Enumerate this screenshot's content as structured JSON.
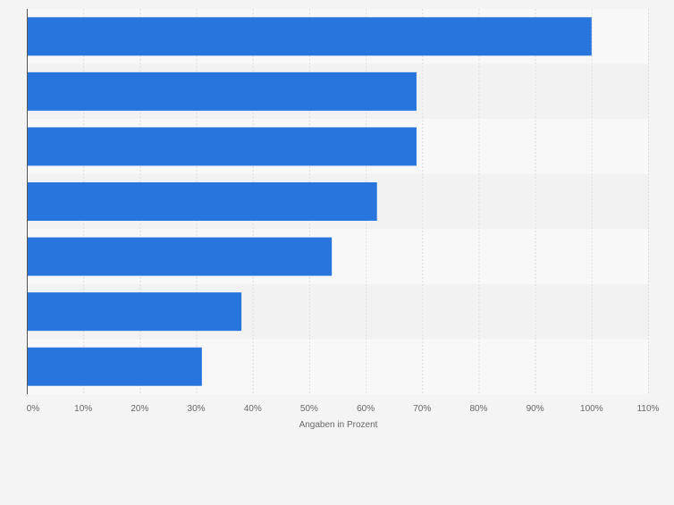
{
  "chart_data": {
    "type": "bar",
    "orientation": "horizontal",
    "categories": [
      "",
      "",
      "",
      "",
      "",
      "",
      ""
    ],
    "values": [
      100,
      69,
      69,
      62,
      54,
      38,
      31
    ],
    "xlabel": "Angaben in Prozent",
    "xlim": [
      0,
      110
    ],
    "xticks": [
      0,
      10,
      20,
      30,
      40,
      50,
      60,
      70,
      80,
      90,
      100,
      110
    ],
    "tick_labels": [
      "0%",
      "10%",
      "20%",
      "30%",
      "40%",
      "50%",
      "60%",
      "70%",
      "80%",
      "90%",
      "100%",
      "110%"
    ],
    "grid": true,
    "bar_color": "#2876dd"
  },
  "colors": {
    "background": "#f4f4f4",
    "band_light": "#f8f8f8",
    "band_dark": "#f2f2f2",
    "grid": "#dddddd",
    "axis": "#555555",
    "tick_text": "#666666"
  }
}
